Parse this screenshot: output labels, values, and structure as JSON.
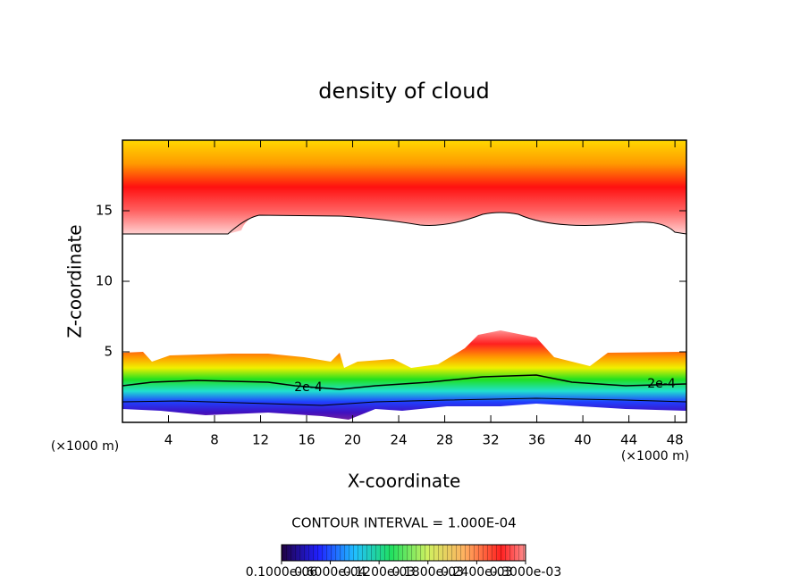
{
  "chart_data": {
    "type": "contour",
    "title": "density of cloud",
    "x_label": "X-coordinate",
    "y_label": "Z-coordinate",
    "x_unit_left": "(×1000 m)",
    "x_unit_right": "(×1000 m)",
    "xlim": [
      0,
      49
    ],
    "xticks": [
      4,
      8,
      12,
      16,
      20,
      24,
      28,
      32,
      36,
      40,
      44,
      48
    ],
    "ylim": [
      0,
      20
    ],
    "yticks": [
      5,
      10,
      15
    ],
    "contour_labels": [
      "2e-4",
      "2e-4"
    ],
    "contour_interval": "CONTOUR INTERVAL = 1.000E-04",
    "colorbar": {
      "lim": [
        1e-07,
        0.0003
      ],
      "ticks": [
        {
          "value": 1e-07,
          "label": "0.1000e-06"
        },
        {
          "value": 6e-05,
          "label": "0.6000e-04"
        },
        {
          "value": 0.00012,
          "label": "0.1200e-03"
        },
        {
          "value": 0.00018,
          "label": "0.1800e-03"
        },
        {
          "value": 0.00024,
          "label": "0.2400e-03"
        },
        {
          "value": 0.0003,
          "label": "0.3000e-03"
        }
      ]
    }
  }
}
